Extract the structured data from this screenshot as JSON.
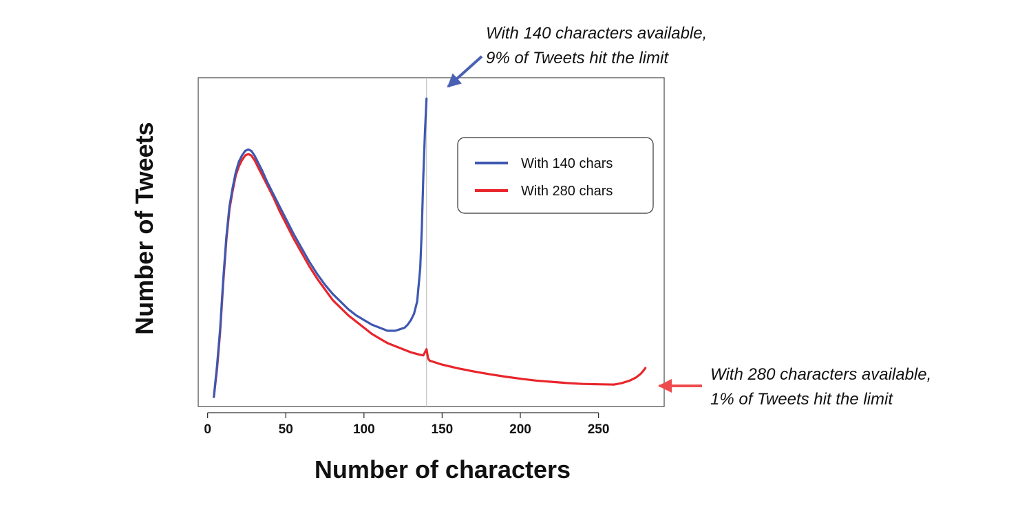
{
  "chart_data": {
    "type": "line",
    "title": "",
    "xlabel": "Number of characters",
    "ylabel": "Number of Tweets",
    "xlim": [
      -6,
      292
    ],
    "ylim": [
      0,
      100
    ],
    "xticks": [
      0,
      50,
      100,
      150,
      200,
      250
    ],
    "grid": false,
    "legend_position": "top-right",
    "limit_marker_x": 140,
    "series": [
      {
        "name": "With 140 chars",
        "color": "#3E57B0",
        "x": [
          4,
          6,
          8,
          10,
          12,
          14,
          16,
          18,
          20,
          22,
          24,
          26,
          28,
          30,
          32,
          35,
          38,
          42,
          46,
          50,
          55,
          60,
          65,
          70,
          75,
          80,
          85,
          90,
          95,
          100,
          105,
          110,
          115,
          118,
          120,
          123,
          126,
          128,
          130,
          132,
          134,
          136,
          137,
          138,
          139,
          140
        ],
        "y": [
          0,
          10,
          22,
          38,
          52,
          62,
          68,
          73,
          76.5,
          78.5,
          80,
          80.5,
          80,
          78.5,
          76.5,
          73.5,
          70,
          66,
          62,
          58,
          53,
          48.5,
          44,
          40,
          36.5,
          33.5,
          31,
          28.5,
          26.5,
          25,
          23.5,
          22.5,
          21.5,
          21.5,
          21.5,
          22,
          22.5,
          23.5,
          25,
          27,
          31,
          42,
          55,
          72,
          86,
          97
        ]
      },
      {
        "name": "With 280 chars",
        "color": "#E8252B",
        "x": [
          4,
          6,
          8,
          10,
          12,
          14,
          16,
          18,
          20,
          22,
          24,
          26,
          28,
          30,
          32,
          35,
          38,
          42,
          46,
          50,
          55,
          60,
          65,
          70,
          75,
          80,
          85,
          90,
          95,
          100,
          105,
          110,
          115,
          120,
          125,
          130,
          135,
          138,
          139,
          140,
          141,
          142,
          145,
          150,
          160,
          170,
          180,
          190,
          200,
          210,
          220,
          230,
          240,
          250,
          260,
          265,
          270,
          274,
          277,
          279,
          280
        ],
        "y": [
          0,
          9,
          21,
          37,
          51,
          61,
          67,
          72,
          75,
          77,
          78.5,
          79,
          78.5,
          77,
          75,
          72,
          69,
          65,
          60.5,
          56.5,
          51.5,
          47,
          42.5,
          38.5,
          35,
          31.5,
          29,
          26.5,
          24.5,
          22.5,
          20.5,
          19,
          17.5,
          16.5,
          15.5,
          14.5,
          13.8,
          13.5,
          14.5,
          15.5,
          12.5,
          11.8,
          11.3,
          10.5,
          9.3,
          8.3,
          7.4,
          6.6,
          5.9,
          5.3,
          4.9,
          4.5,
          4.2,
          4.1,
          4,
          4.5,
          5.3,
          6.3,
          7.5,
          8.7,
          9.4
        ]
      }
    ],
    "annotations": [
      {
        "target": "With 140 chars",
        "lines": [
          "With 140 characters available,",
          "9% of Tweets hit the limit"
        ],
        "arrow_color": "#4A60B4"
      },
      {
        "target": "With 280 chars",
        "lines": [
          "With 280 characters available,",
          "1% of Tweets hit the limit"
        ],
        "arrow_color": "#EE4B4D"
      }
    ]
  }
}
